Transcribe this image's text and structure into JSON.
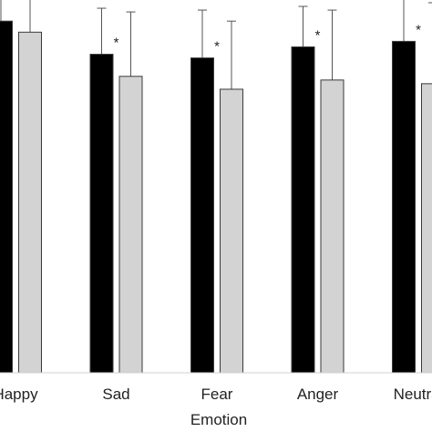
{
  "chart_data": {
    "type": "bar",
    "title": "",
    "xlabel": "Emotion",
    "ylabel": "",
    "categories": [
      "Happy",
      "Sad",
      "Fear",
      "Anger",
      "Neutral"
    ],
    "ylim": [
      0,
      100
    ],
    "grid": false,
    "legend": "none",
    "series": [
      {
        "color": "#000000",
        "values": [
          95.5,
          86.5,
          85.5,
          88.5,
          90
        ],
        "error": [
          8,
          12.5,
          13,
          11,
          13
        ]
      },
      {
        "color": "#d3d3d3",
        "values": [
          92.5,
          80.5,
          77,
          79.5,
          78.5
        ],
        "error": [
          12,
          17.5,
          18.5,
          19,
          22
        ]
      }
    ],
    "annotations": [
      {
        "category": "Sad",
        "text": "*"
      },
      {
        "category": "Fear",
        "text": "*"
      },
      {
        "category": "Anger",
        "text": "*"
      },
      {
        "category": "Neutral",
        "text": "*"
      }
    ]
  }
}
